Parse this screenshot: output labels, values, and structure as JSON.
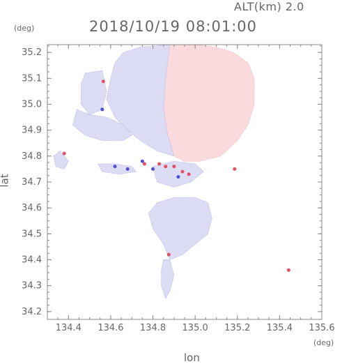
{
  "header": {
    "altitude": "ALT(km) 2.0",
    "timestamp": "2018/10/19 08:01:00"
  },
  "chart_data": {
    "type": "heatmap",
    "title": "2018/10/19 08:01:00",
    "xlabel": "lon",
    "ylabel": "lat",
    "x_unit": "(deg)",
    "y_unit": "(deg)",
    "xlim": [
      134.3,
      135.6
    ],
    "ylim": [
      34.17,
      35.23
    ],
    "x_ticks": [
      134.4,
      134.6,
      134.8,
      135.0,
      135.2,
      135.4,
      135.6
    ],
    "y_ticks": [
      34.2,
      34.3,
      34.4,
      34.5,
      34.6,
      34.7,
      34.8,
      34.9,
      35.0,
      35.1,
      35.2
    ],
    "x_tick_labels": [
      "134.4",
      "134.6",
      "134.8",
      "135.0",
      "135.2",
      "135.4",
      "135.6"
    ],
    "y_tick_labels": [
      "34.2",
      "34.3",
      "34.4",
      "34.5",
      "34.6",
      "34.7",
      "34.8",
      "34.9",
      "35.0",
      "35.1",
      "35.2"
    ],
    "colors": {
      "positive": "#fadadd",
      "negative": "#dcdcf4",
      "strong_positive": "#e05060",
      "strong_negative": "#5050d0",
      "axis": "#888888"
    },
    "regions": [
      {
        "sign": "positive",
        "points": [
          [
            134.88,
            35.23
          ],
          [
            135.0,
            35.23
          ],
          [
            135.1,
            35.22
          ],
          [
            135.18,
            35.2
          ],
          [
            135.25,
            35.16
          ],
          [
            135.28,
            35.1
          ],
          [
            135.28,
            35.0
          ],
          [
            135.25,
            34.92
          ],
          [
            135.2,
            34.86
          ],
          [
            135.12,
            34.8
          ],
          [
            135.02,
            34.78
          ],
          [
            134.95,
            34.78
          ],
          [
            134.9,
            34.8
          ],
          [
            134.87,
            34.88
          ],
          [
            134.85,
            34.98
          ],
          [
            134.85,
            35.1
          ],
          [
            134.86,
            35.2
          ]
        ]
      },
      {
        "sign": "negative",
        "points": [
          [
            134.66,
            35.2
          ],
          [
            134.74,
            35.22
          ],
          [
            134.88,
            35.23
          ],
          [
            134.86,
            35.1
          ],
          [
            134.85,
            34.98
          ],
          [
            134.87,
            34.88
          ],
          [
            134.9,
            34.8
          ],
          [
            134.82,
            34.82
          ],
          [
            134.74,
            34.86
          ],
          [
            134.68,
            34.9
          ],
          [
            134.62,
            34.95
          ],
          [
            134.58,
            35.02
          ],
          [
            134.6,
            35.1
          ],
          [
            134.62,
            35.16
          ]
        ]
      },
      {
        "sign": "negative",
        "points": [
          [
            134.48,
            35.12
          ],
          [
            134.56,
            35.13
          ],
          [
            134.58,
            35.05
          ],
          [
            134.56,
            34.98
          ],
          [
            134.5,
            34.96
          ],
          [
            134.46,
            35.0
          ],
          [
            134.46,
            35.08
          ]
        ]
      },
      {
        "sign": "negative",
        "points": [
          [
            134.44,
            34.98
          ],
          [
            134.5,
            34.96
          ],
          [
            134.58,
            34.95
          ],
          [
            134.66,
            34.92
          ],
          [
            134.7,
            34.88
          ],
          [
            134.66,
            34.86
          ],
          [
            134.56,
            34.86
          ],
          [
            134.48,
            34.88
          ],
          [
            134.42,
            34.92
          ]
        ]
      },
      {
        "sign": "negative",
        "points": [
          [
            134.33,
            34.8
          ],
          [
            134.36,
            34.82
          ],
          [
            134.4,
            34.78
          ],
          [
            134.38,
            34.75
          ],
          [
            134.34,
            34.76
          ]
        ]
      },
      {
        "sign": "negative",
        "points": [
          [
            134.82,
            34.62
          ],
          [
            134.9,
            34.64
          ],
          [
            135.0,
            34.64
          ],
          [
            135.06,
            34.62
          ],
          [
            135.08,
            34.56
          ],
          [
            135.06,
            34.5
          ],
          [
            135.0,
            34.46
          ],
          [
            134.94,
            34.42
          ],
          [
            134.88,
            34.4
          ],
          [
            134.85,
            34.46
          ],
          [
            134.8,
            34.52
          ],
          [
            134.78,
            34.58
          ]
        ]
      },
      {
        "sign": "negative",
        "points": [
          [
            134.85,
            34.4
          ],
          [
            134.88,
            34.4
          ],
          [
            134.9,
            34.34
          ],
          [
            134.88,
            34.28
          ],
          [
            134.86,
            34.25
          ],
          [
            134.84,
            34.3
          ],
          [
            134.84,
            34.36
          ]
        ]
      },
      {
        "sign": "negative",
        "points": [
          [
            134.54,
            34.77
          ],
          [
            134.62,
            34.77
          ],
          [
            134.7,
            34.76
          ],
          [
            134.72,
            34.74
          ],
          [
            134.64,
            34.73
          ],
          [
            134.56,
            34.74
          ]
        ]
      },
      {
        "sign": "negative",
        "points": [
          [
            134.8,
            34.76
          ],
          [
            134.9,
            34.78
          ],
          [
            135.0,
            34.77
          ],
          [
            135.04,
            34.74
          ],
          [
            134.98,
            34.7
          ],
          [
            134.9,
            34.68
          ],
          [
            134.82,
            34.7
          ]
        ]
      }
    ],
    "points": [
      {
        "lon": 134.565,
        "lat": 35.088,
        "sign": "strong_positive"
      },
      {
        "lon": 134.38,
        "lat": 34.81,
        "sign": "strong_positive"
      },
      {
        "lon": 134.76,
        "lat": 34.77,
        "sign": "strong_positive"
      },
      {
        "lon": 134.83,
        "lat": 34.77,
        "sign": "strong_positive"
      },
      {
        "lon": 134.86,
        "lat": 34.76,
        "sign": "strong_positive"
      },
      {
        "lon": 134.9,
        "lat": 34.76,
        "sign": "strong_positive"
      },
      {
        "lon": 134.94,
        "lat": 34.74,
        "sign": "strong_positive"
      },
      {
        "lon": 134.97,
        "lat": 34.73,
        "sign": "strong_positive"
      },
      {
        "lon": 134.875,
        "lat": 34.42,
        "sign": "strong_positive"
      },
      {
        "lon": 135.187,
        "lat": 34.75,
        "sign": "strong_positive"
      },
      {
        "lon": 135.443,
        "lat": 34.36,
        "sign": "strong_positive"
      },
      {
        "lon": 134.62,
        "lat": 34.76,
        "sign": "strong_negative"
      },
      {
        "lon": 134.68,
        "lat": 34.75,
        "sign": "strong_negative"
      },
      {
        "lon": 134.75,
        "lat": 34.78,
        "sign": "strong_negative"
      },
      {
        "lon": 134.8,
        "lat": 34.75,
        "sign": "strong_negative"
      },
      {
        "lon": 134.92,
        "lat": 34.72,
        "sign": "strong_negative"
      },
      {
        "lon": 134.56,
        "lat": 34.98,
        "sign": "strong_negative"
      }
    ]
  }
}
